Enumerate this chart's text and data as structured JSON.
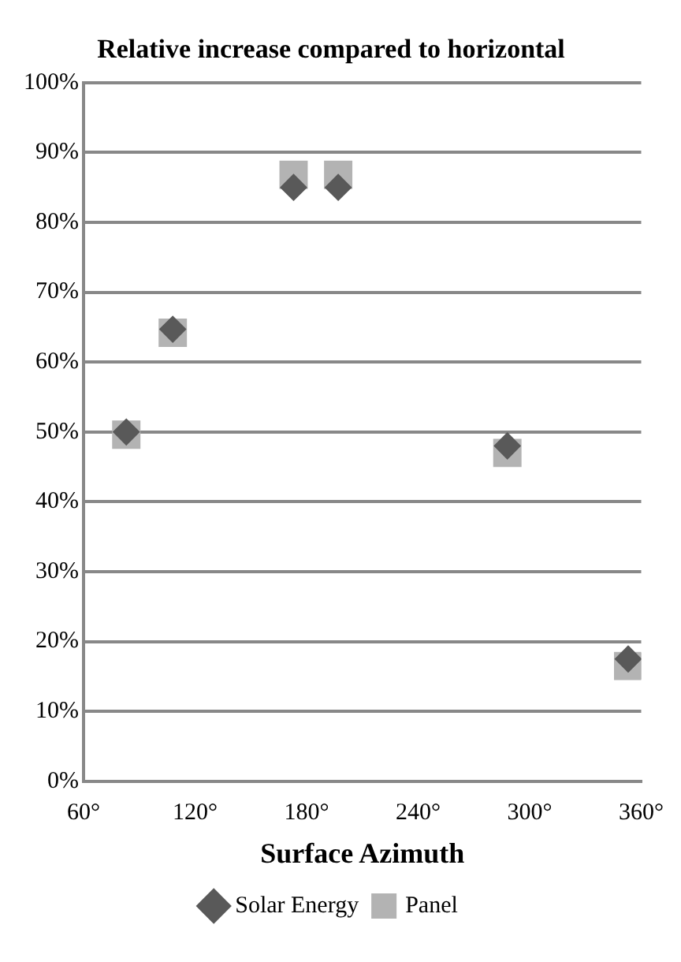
{
  "chart_data": {
    "type": "scatter",
    "title": "Relative increase compared to horizontal",
    "xlabel": "Surface Azimuth",
    "x": [
      83,
      108,
      173,
      197,
      288,
      353
    ],
    "series": [
      {
        "name": "Panel",
        "color": "#b3b3b3",
        "marker": "square",
        "values": [
          49.6,
          64.2,
          86.8,
          86.8,
          47,
          16.5
        ]
      },
      {
        "name": "Solar Energy",
        "color": "#595959",
        "marker": "diamond",
        "values": [
          50,
          64.7,
          85,
          85,
          48,
          17.5
        ]
      }
    ],
    "xlim": [
      60,
      360
    ],
    "xticks": [
      {
        "value": 60,
        "label": "60°"
      },
      {
        "value": 120,
        "label": "120°"
      },
      {
        "value": 180,
        "label": "180°"
      },
      {
        "value": 240,
        "label": "240°"
      },
      {
        "value": 300,
        "label": "300°"
      },
      {
        "value": 360,
        "label": "360°"
      }
    ],
    "ylim": [
      0,
      100
    ],
    "yticks": [
      {
        "value": 0,
        "label": "0%"
      },
      {
        "value": 10,
        "label": "10%"
      },
      {
        "value": 20,
        "label": "20%"
      },
      {
        "value": 30,
        "label": "30%"
      },
      {
        "value": 40,
        "label": "40%"
      },
      {
        "value": 50,
        "label": "50%"
      },
      {
        "value": 60,
        "label": "60%"
      },
      {
        "value": 70,
        "label": "70%"
      },
      {
        "value": 80,
        "label": "80%"
      },
      {
        "value": 90,
        "label": "90%"
      },
      {
        "value": 100,
        "label": "100%"
      }
    ],
    "grid": "y",
    "legend": "bottom"
  }
}
